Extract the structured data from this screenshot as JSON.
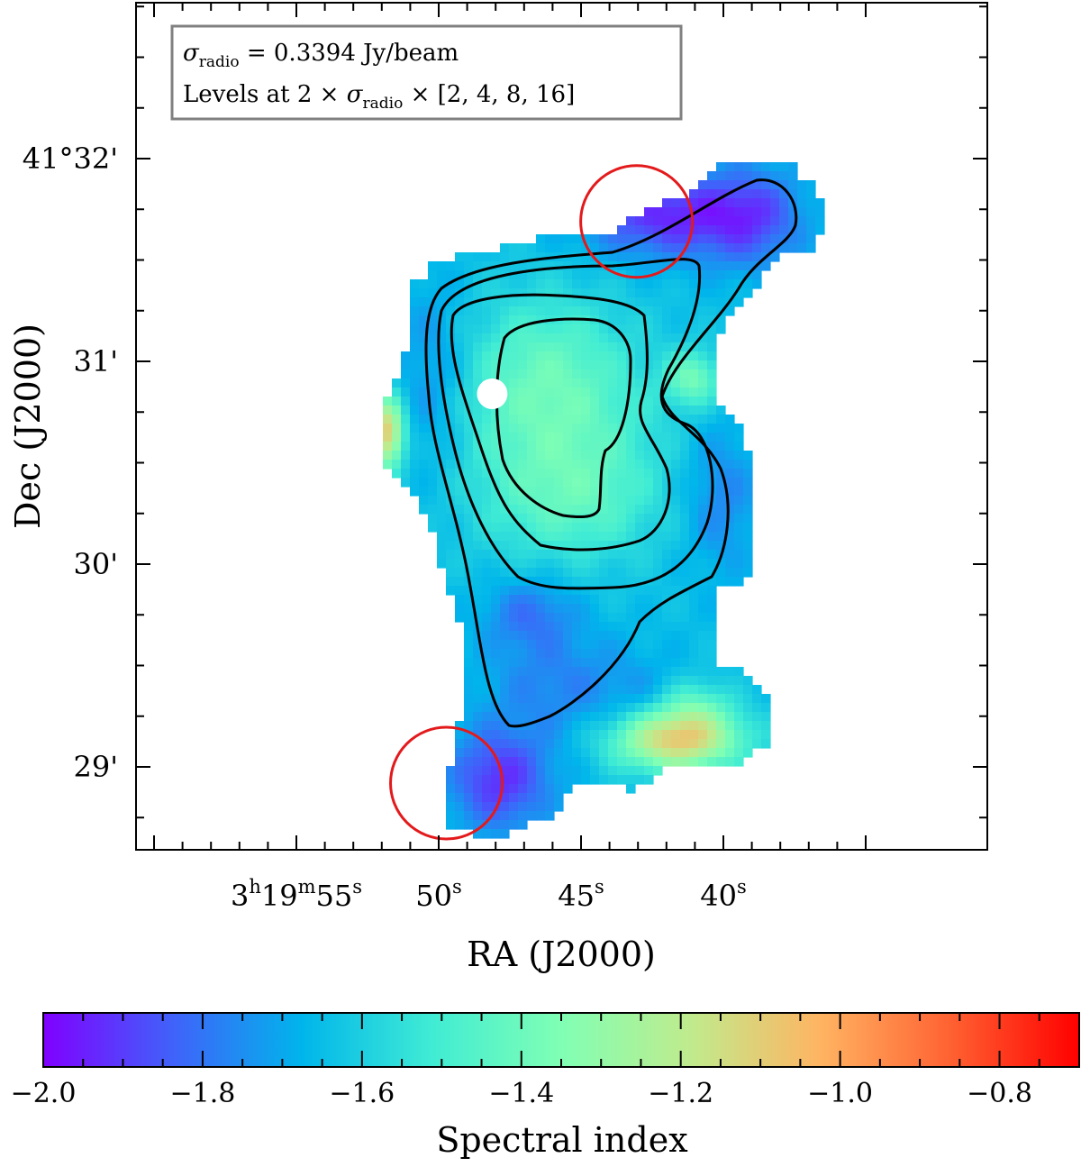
{
  "chart_data": {
    "type": "heatmap",
    "title": "",
    "xlabel": "RA (J2000)",
    "ylabel": "Dec (J2000)",
    "colorbar_label": "Spectral index",
    "colormap": "rainbow",
    "value_range": [
      -2.0,
      -0.7
    ],
    "x_tick_labels": [
      {
        "ra_sec": 55,
        "base": "3",
        "parts": [
          [
            "h",
            true
          ],
          [
            "19",
            false
          ],
          [
            "m",
            true
          ],
          [
            "55",
            false
          ],
          [
            "s",
            true
          ]
        ]
      },
      {
        "ra_sec": 50,
        "base": "50",
        "parts": [
          [
            "s",
            true
          ]
        ]
      },
      {
        "ra_sec": 45,
        "base": "45",
        "parts": [
          [
            "s",
            true
          ]
        ]
      },
      {
        "ra_sec": 40,
        "base": "40",
        "parts": [
          [
            "s",
            true
          ]
        ]
      }
    ],
    "y_tick_labels": [
      {
        "dec_arcmin": 32,
        "text": "41°32'"
      },
      {
        "dec_arcmin": 31,
        "text": "31'"
      },
      {
        "dec_arcmin": 30,
        "text": "30'"
      },
      {
        "dec_arcmin": 29,
        "text": "29'"
      }
    ],
    "colorbar_ticks": [
      {
        "value": -2.0,
        "text": "−2.0"
      },
      {
        "value": -1.8,
        "text": "−1.8"
      },
      {
        "value": -1.6,
        "text": "−1.6"
      },
      {
        "value": -1.4,
        "text": "−1.4"
      },
      {
        "value": -1.2,
        "text": "−1.2"
      },
      {
        "value": -1.0,
        "text": "−1.0"
      },
      {
        "value": -0.8,
        "text": "−0.8"
      }
    ],
    "legend": {
      "position": "top-left",
      "line1": {
        "sigma": "σ",
        "sub": "radio",
        "rest": " = 0.3394 Jy/beam"
      },
      "line2": {
        "pre": "Levels at 2 × ",
        "sigma": "σ",
        "sub": "radio",
        "post": " × [2, 4, 8, 16]"
      }
    },
    "contour_levels_sigma_multiples": [
      2,
      4,
      8,
      16
    ],
    "regions": [
      {
        "shape": "circle",
        "color": "#e31a1c",
        "ra_sec": 43.05,
        "dec_arcmin": 31.69
      },
      {
        "shape": "circle",
        "color": "#e31a1c",
        "ra_sec": 49.73,
        "dec_arcmin": 28.92
      }
    ],
    "marker": {
      "shape": "dot",
      "color": "#ffffff",
      "ra_sec": 48.12,
      "dec_arcmin": 30.84
    },
    "contour_color": "#000000",
    "grid": false
  }
}
